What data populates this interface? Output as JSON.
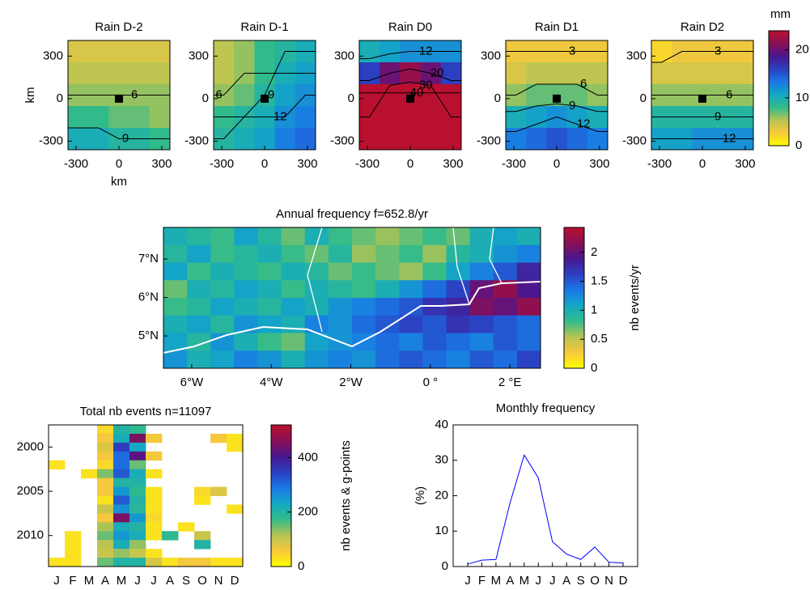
{
  "colormap": [
    "#ffff00",
    "#f7c83c",
    "#b6c453",
    "#32bb8a",
    "#13a8c4",
    "#1a78e6",
    "#2c3fc0",
    "#4a1790",
    "#8a0f55",
    "#b8102e"
  ],
  "chart_data": [
    {
      "type": "heatmap",
      "title": "Rain D-2",
      "xlim": [
        -357,
        357
      ],
      "ylim": [
        -360,
        410
      ],
      "xticks": [
        -300,
        0,
        300
      ],
      "yticks": [
        -300,
        0,
        300
      ],
      "xlabel": "km",
      "ylabel": "km",
      "clim": [
        0,
        24
      ],
      "z": [
        [
          4,
          4,
          4,
          4,
          4
        ],
        [
          5,
          5,
          5,
          5,
          5
        ],
        [
          6,
          6,
          6,
          6,
          6
        ],
        [
          8,
          8,
          7,
          7,
          6
        ],
        [
          10,
          10,
          9,
          9,
          8
        ]
      ],
      "contour_levels": [
        6,
        9
      ]
    },
    {
      "type": "heatmap",
      "title": "Rain D-1",
      "xlim": [
        -357,
        357
      ],
      "ylim": [
        -360,
        410
      ],
      "xticks": [
        -300,
        0,
        300
      ],
      "yticks": [
        -300,
        0,
        300
      ],
      "clim": [
        0,
        24
      ],
      "z": [
        [
          5,
          6,
          8,
          9,
          10
        ],
        [
          5,
          6,
          8,
          10,
          11
        ],
        [
          6,
          7,
          9,
          11,
          12
        ],
        [
          8,
          9,
          10,
          12,
          13
        ],
        [
          9,
          10,
          11,
          13,
          14
        ]
      ],
      "contour_levels": [
        6,
        9,
        12
      ]
    },
    {
      "type": "heatmap",
      "title": "Rain D0",
      "xlim": [
        -357,
        357
      ],
      "ylim": [
        -360,
        410
      ],
      "xticks": [
        -300,
        0,
        300
      ],
      "yticks": [
        -300,
        0,
        300
      ],
      "clim": [
        0,
        24
      ],
      "z": [
        [
          10,
          11,
          12,
          12,
          12
        ],
        [
          16,
          20,
          22,
          20,
          16
        ],
        [
          28,
          38,
          42,
          38,
          28
        ],
        [
          30,
          38,
          42,
          38,
          30
        ],
        [
          28,
          32,
          34,
          32,
          28
        ]
      ],
      "contour_levels": [
        12,
        20,
        30,
        40
      ]
    },
    {
      "type": "heatmap",
      "title": "Rain D1",
      "xlim": [
        -357,
        357
      ],
      "ylim": [
        -360,
        410
      ],
      "xticks": [
        -300,
        0,
        300
      ],
      "yticks": [
        -300,
        0,
        300
      ],
      "clim": [
        0,
        24
      ],
      "z": [
        [
          3,
          3,
          3,
          3,
          3
        ],
        [
          4,
          5,
          5,
          5,
          5
        ],
        [
          6,
          7,
          7,
          7,
          6
        ],
        [
          10,
          11,
          12,
          11,
          10
        ],
        [
          13,
          14,
          15,
          14,
          13
        ]
      ],
      "contour_levels": [
        3,
        6,
        9,
        12
      ]
    },
    {
      "type": "heatmap",
      "title": "Rain D2",
      "xlim": [
        -357,
        357
      ],
      "ylim": [
        -360,
        410
      ],
      "xticks": [
        -300,
        0,
        300
      ],
      "yticks": [
        -300,
        0,
        300
      ],
      "clim": [
        0,
        24
      ],
      "z": [
        [
          2,
          3,
          3,
          3,
          3
        ],
        [
          4,
          4,
          4,
          4,
          4
        ],
        [
          6,
          6,
          6,
          6,
          6
        ],
        [
          9,
          9,
          9,
          9,
          9
        ],
        [
          11,
          11,
          12,
          12,
          12
        ]
      ],
      "contour_levels": [
        3,
        6,
        9,
        12
      ],
      "colorbar": {
        "label": "mm",
        "ticks": [
          0,
          10,
          20
        ]
      }
    },
    {
      "type": "heatmap",
      "title": "Annual frequency f=652.8/yr",
      "xlim": [
        -6.71,
        2.77
      ],
      "ylim": [
        4.16,
        7.82
      ],
      "xticks": [
        {
          "value": -6,
          "label": "6°W"
        },
        {
          "value": -4,
          "label": "4°W"
        },
        {
          "value": -2,
          "label": "2°W"
        },
        {
          "value": 0,
          "label": "0 °"
        },
        {
          "value": 2,
          "label": "2 °E"
        }
      ],
      "yticks": [
        {
          "value": 5,
          "label": "5°N"
        },
        {
          "value": 6,
          "label": "6°N"
        },
        {
          "value": 7,
          "label": "7°N"
        }
      ],
      "clim": [
        0,
        2.43
      ],
      "z": [
        [
          1.0,
          0.9,
          0.8,
          1.1,
          0.9,
          0.7,
          1.0,
          0.8,
          0.7,
          0.6,
          0.7,
          0.8,
          0.7,
          1.0,
          1.1,
          1.0
        ],
        [
          0.9,
          1.1,
          0.8,
          0.9,
          1.0,
          0.8,
          0.7,
          0.9,
          0.6,
          0.7,
          0.8,
          0.6,
          0.9,
          1.0,
          1.2,
          1.3
        ],
        [
          1.1,
          0.8,
          1.0,
          0.9,
          0.8,
          1.0,
          0.9,
          0.7,
          0.8,
          0.7,
          0.6,
          0.8,
          1.1,
          1.3,
          1.5,
          1.8
        ],
        [
          0.7,
          1.0,
          0.9,
          1.1,
          1.0,
          0.8,
          1.0,
          0.9,
          0.8,
          1.0,
          1.2,
          1.4,
          1.6,
          2.0,
          2.2,
          1.9
        ],
        [
          0.8,
          0.9,
          1.1,
          1.0,
          0.9,
          1.1,
          1.0,
          1.2,
          1.3,
          1.4,
          1.5,
          1.7,
          1.8,
          2.1,
          2.0,
          2.2
        ],
        [
          1.0,
          1.1,
          0.9,
          1.2,
          1.1,
          1.0,
          1.3,
          1.2,
          1.4,
          1.5,
          1.6,
          1.5,
          1.7,
          1.6,
          1.5,
          1.4
        ],
        [
          1.1,
          0.9,
          1.2,
          1.0,
          0.8,
          0.7,
          1.1,
          1.2,
          1.3,
          1.4,
          1.3,
          1.5,
          1.4,
          1.3,
          1.5,
          1.4
        ],
        [
          1.2,
          1.0,
          1.1,
          1.3,
          1.2,
          1.0,
          1.2,
          1.3,
          1.2,
          1.4,
          1.5,
          1.4,
          1.3,
          1.5,
          1.4,
          1.6
        ]
      ],
      "colorbar": {
        "label": "nb events/yr",
        "ticks": [
          0,
          0.5,
          1,
          1.5,
          2
        ]
      }
    },
    {
      "type": "heatmap",
      "title": "Total nb events n=11097",
      "categories": [
        "J",
        "F",
        "M",
        "A",
        "M",
        "J",
        "J",
        "A",
        "S",
        "O",
        "N",
        "D"
      ],
      "ylim": [
        2013.5,
        1997.5
      ],
      "yticks": [
        2000,
        2005,
        2010
      ],
      "clim": [
        0,
        520
      ],
      "z": [
        [
          null,
          null,
          null,
          40,
          200,
          180,
          null,
          null,
          null,
          null,
          null,
          null
        ],
        [
          null,
          null,
          null,
          60,
          220,
          450,
          60,
          null,
          null,
          null,
          60,
          30
        ],
        [
          null,
          null,
          null,
          80,
          350,
          230,
          null,
          null,
          null,
          null,
          null,
          30
        ],
        [
          null,
          null,
          null,
          60,
          300,
          420,
          60,
          null,
          null,
          null,
          null,
          null
        ],
        [
          30,
          null,
          null,
          40,
          300,
          150,
          null,
          null,
          null,
          null,
          null,
          null
        ],
        [
          null,
          null,
          30,
          140,
          320,
          220,
          30,
          null,
          null,
          null,
          null,
          null
        ],
        [
          null,
          null,
          null,
          60,
          200,
          200,
          null,
          null,
          null,
          null,
          null,
          null
        ],
        [
          null,
          null,
          null,
          60,
          250,
          180,
          30,
          null,
          null,
          40,
          80,
          null
        ],
        [
          null,
          null,
          null,
          30,
          320,
          200,
          30,
          null,
          null,
          30,
          null,
          null
        ],
        [
          null,
          null,
          null,
          100,
          260,
          190,
          30,
          null,
          null,
          null,
          null,
          30
        ],
        [
          null,
          null,
          null,
          60,
          450,
          250,
          40,
          null,
          null,
          null,
          null,
          null
        ],
        [
          null,
          null,
          null,
          120,
          220,
          200,
          30,
          null,
          30,
          null,
          null,
          null
        ],
        [
          null,
          30,
          null,
          150,
          250,
          220,
          30,
          180,
          null,
          100,
          null,
          null
        ],
        [
          null,
          30,
          null,
          110,
          220,
          130,
          null,
          null,
          null,
          200,
          null,
          null
        ],
        [
          null,
          30,
          null,
          100,
          130,
          100,
          30,
          null,
          null,
          null,
          null,
          null
        ],
        [
          30,
          30,
          null,
          150,
          200,
          200,
          90,
          30,
          60,
          60,
          30,
          30
        ]
      ],
      "colorbar": {
        "label": "nb events & g-points",
        "ticks": [
          0,
          200,
          400
        ]
      }
    },
    {
      "type": "line",
      "title": "Monthly frequency",
      "categories": [
        "J",
        "F",
        "M",
        "A",
        "M",
        "J",
        "J",
        "A",
        "S",
        "O",
        "N",
        "D"
      ],
      "values": [
        0.7,
        1.8,
        2.0,
        18,
        31.5,
        25,
        7,
        3.5,
        2,
        5.5,
        1.2,
        1
      ],
      "ylim": [
        0,
        40
      ],
      "yticks": [
        0,
        10,
        20,
        30,
        40
      ],
      "ylabel": "(%)",
      "color": "#0000ff"
    }
  ]
}
